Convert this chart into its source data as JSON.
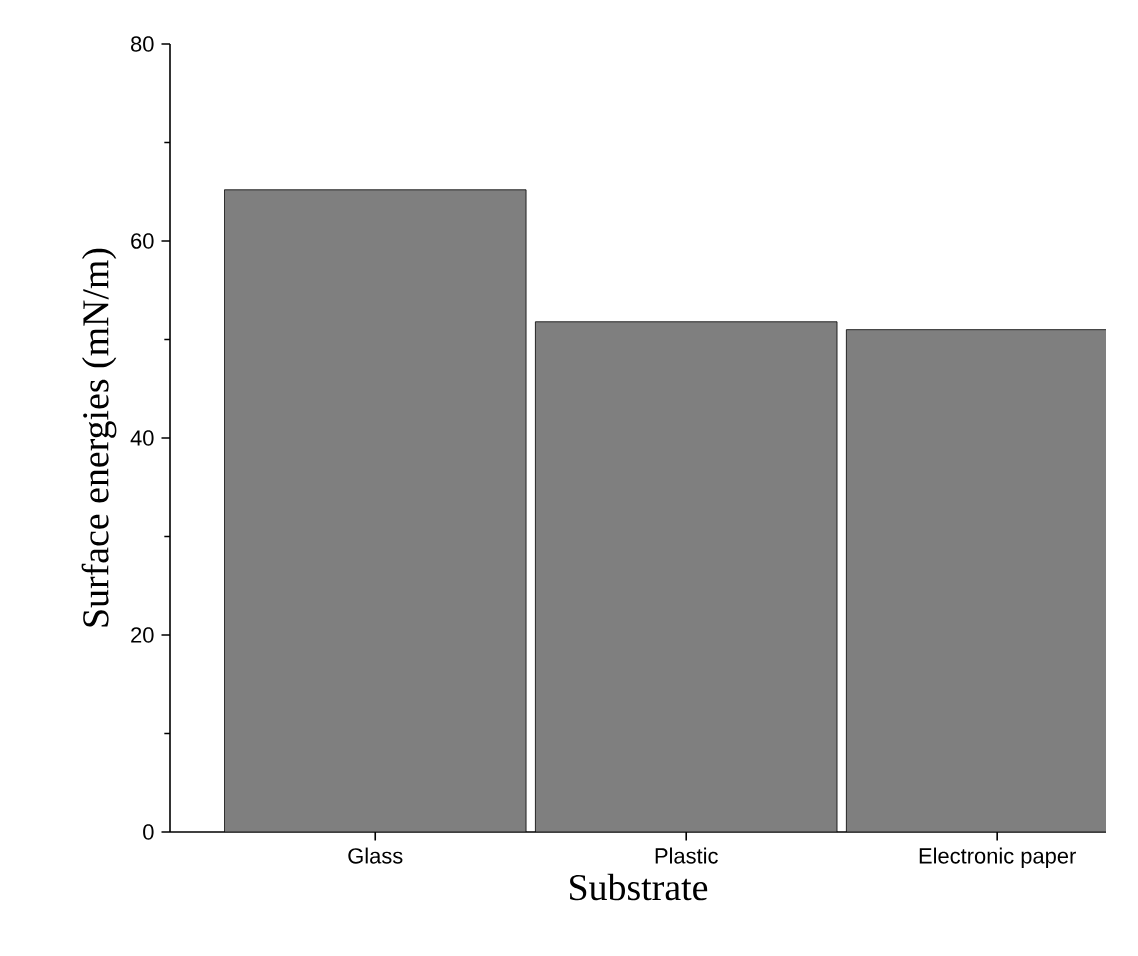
{
  "chart_data": {
    "type": "bar",
    "xlabel": "Substrate",
    "ylabel": "Surface energies (mN/m)",
    "categories": [
      "Glass",
      "Plastic",
      "Electronic paper"
    ],
    "values": [
      65.2,
      51.8,
      51.0
    ],
    "color": "#7f7f7f",
    "ylim": [
      0,
      80
    ],
    "yticks": [
      0,
      20,
      40,
      60,
      80
    ],
    "grid": false
  }
}
